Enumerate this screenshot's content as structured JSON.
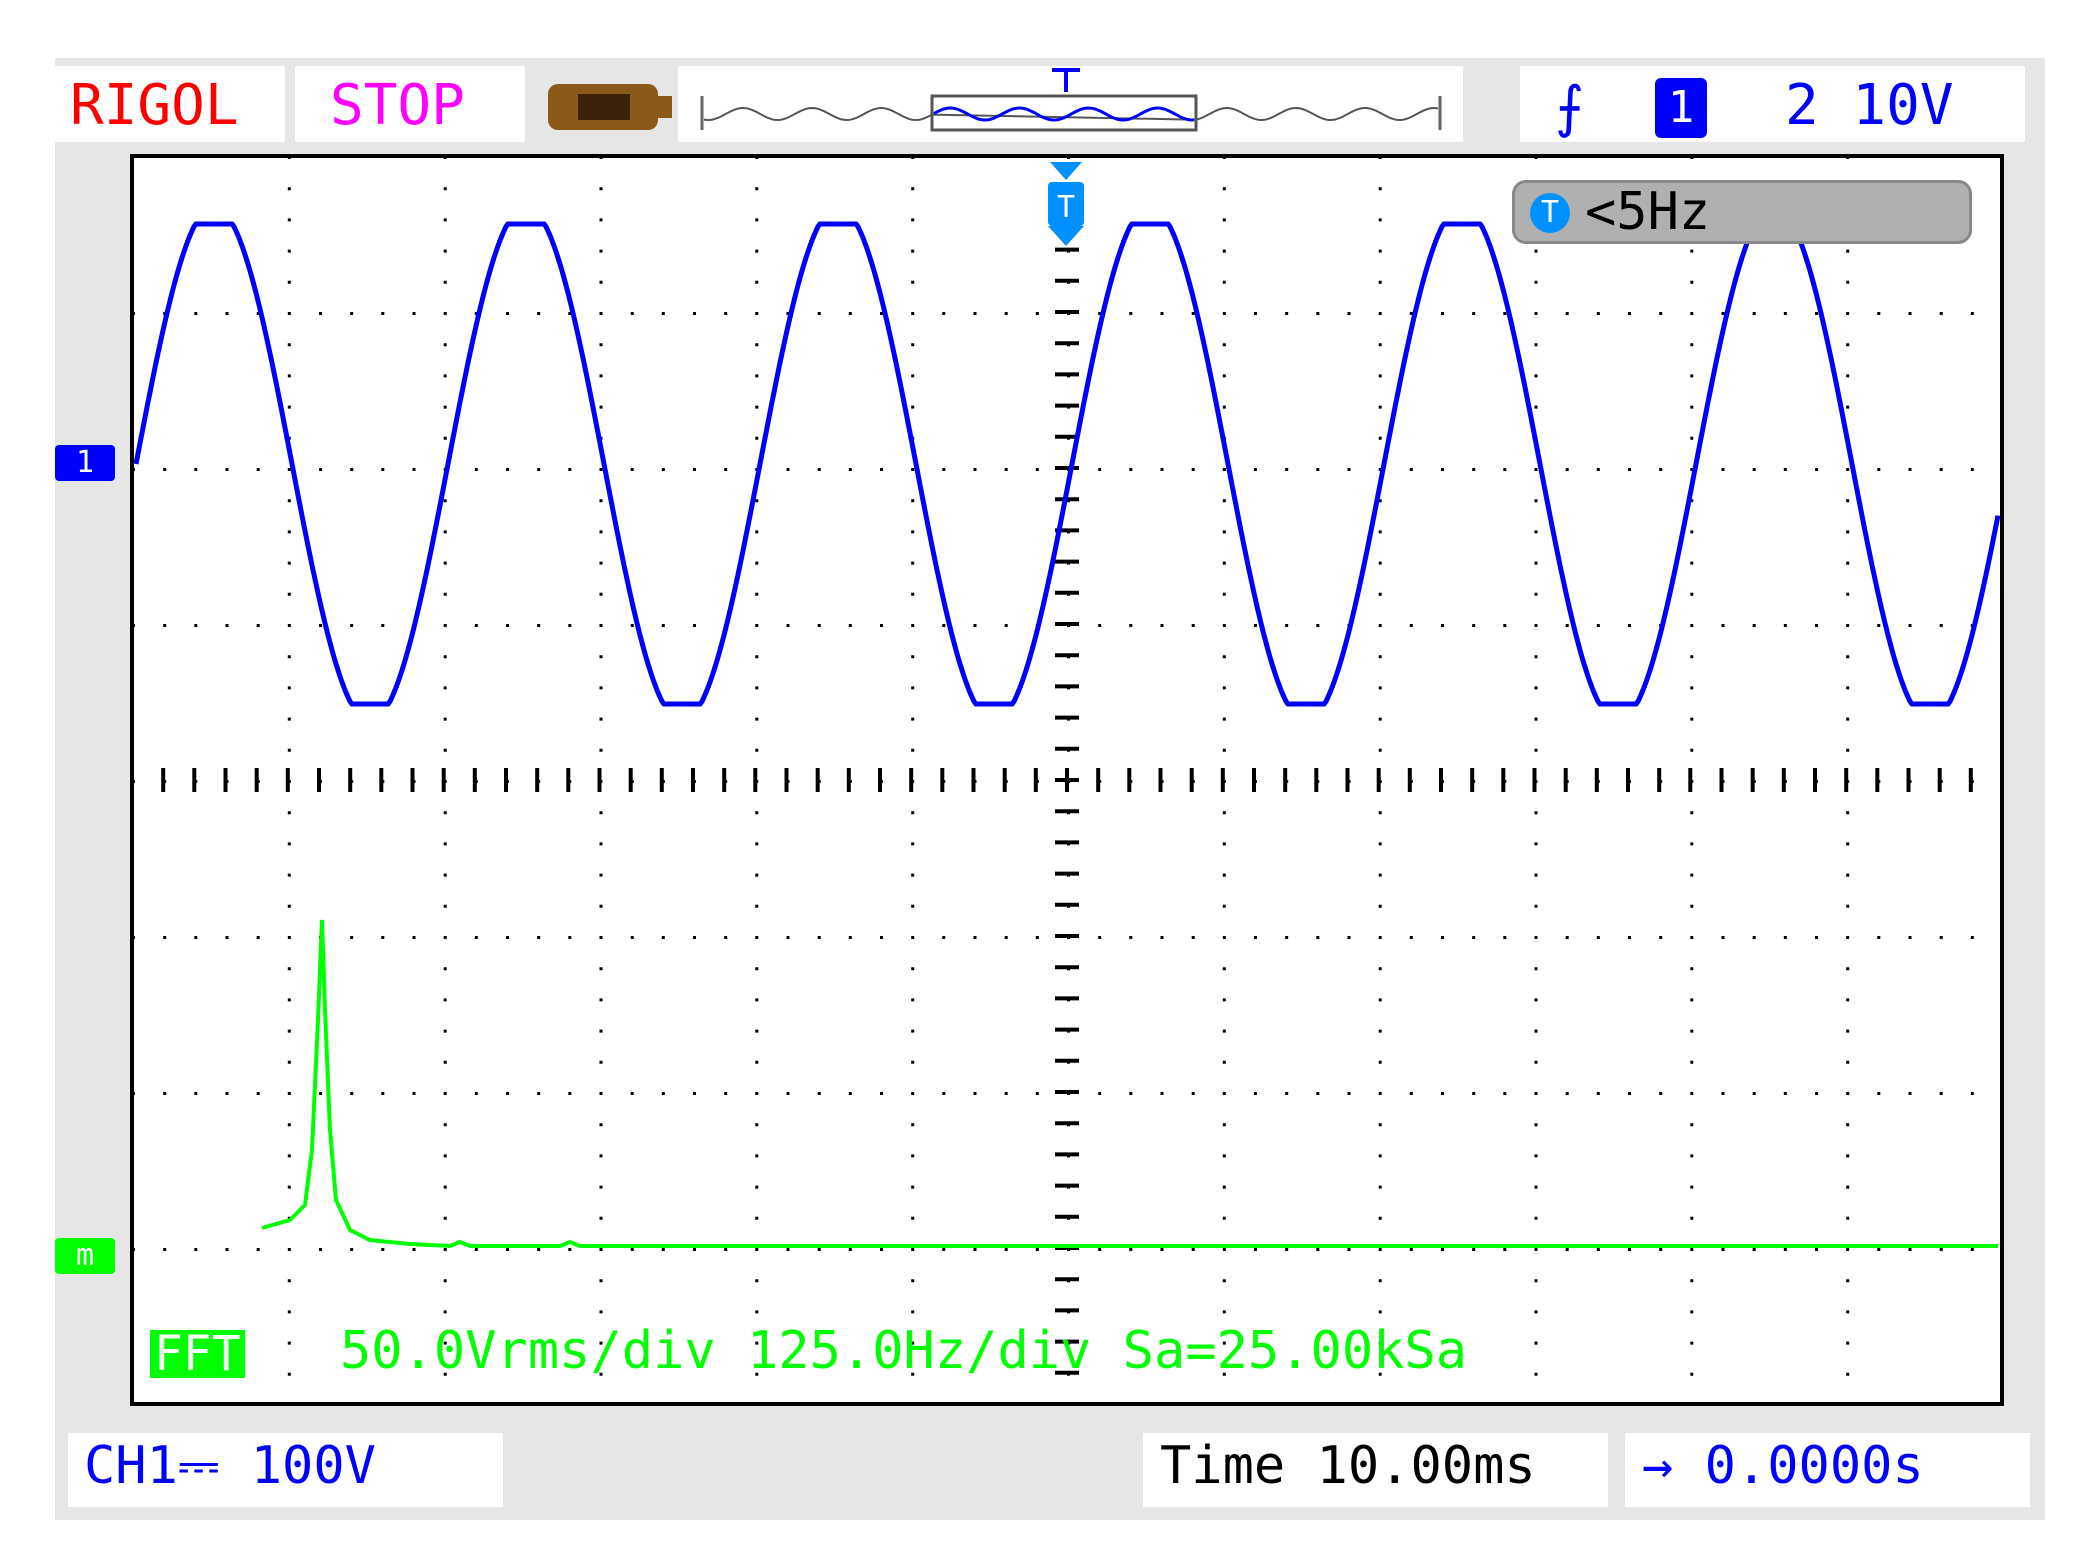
{
  "header": {
    "brand": "RIGOL",
    "run_state": "STOP",
    "trigger_slope_icon": "rising-edge-icon",
    "trigger_source": "1",
    "trigger_level": "2 10V",
    "trigger_marker": "T"
  },
  "measurement": {
    "icon": "T",
    "value": "<5Hz"
  },
  "markers": {
    "ch1": "1",
    "math": "m"
  },
  "fft": {
    "title": "FFT",
    "info": "50.0Vrms/div 125.0Hz/div Sa=25.00kSa"
  },
  "footer": {
    "ch1_scale": "CH1⎓  100V",
    "timebase": "Time 10.00ms",
    "trigger_offset": "→ 0.0000s"
  },
  "colors": {
    "brand": "#ff0000",
    "run": "#ff00ff",
    "ch1": "#0000ff",
    "math": "#00ff00"
  }
}
